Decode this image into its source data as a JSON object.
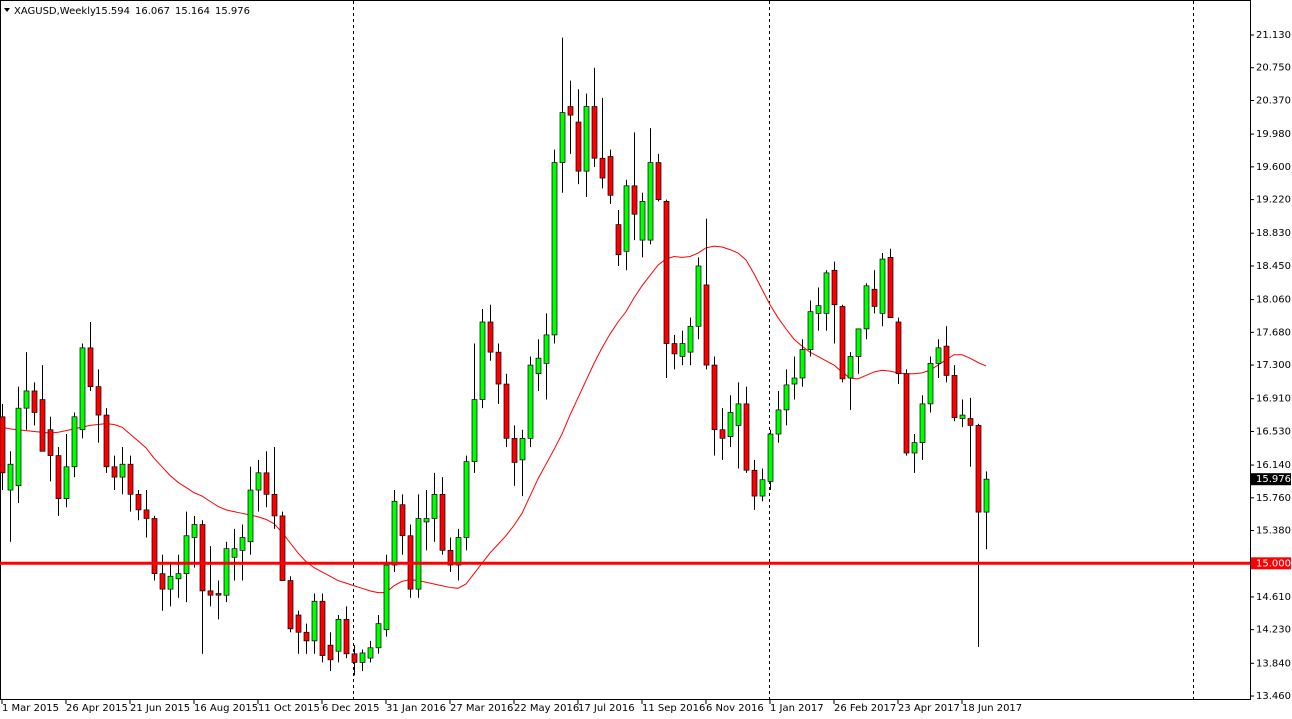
{
  "chart_data": {
    "type": "candlestick",
    "title": "XAGUSD,Weekly",
    "categories": [
      "1 Mar 2015",
      null,
      null,
      null,
      null,
      null,
      null,
      null,
      "26 Apr 2015",
      null,
      null,
      null,
      null,
      null,
      null,
      null,
      "21 Jun 2015",
      null,
      null,
      null,
      null,
      null,
      null,
      null,
      "16 Aug 2015",
      null,
      null,
      null,
      null,
      null,
      null,
      null,
      "11 Oct 2015",
      null,
      null,
      null,
      null,
      null,
      null,
      null,
      "6 Dec 2015",
      null,
      null,
      null,
      null,
      null,
      null,
      null,
      "31 Jan 2016",
      null,
      null,
      null,
      null,
      null,
      null,
      null,
      "27 Mar 2016",
      null,
      null,
      null,
      null,
      null,
      null,
      null,
      "22 May 2016",
      null,
      null,
      null,
      null,
      null,
      null,
      null,
      "17 Jul 2016",
      null,
      null,
      null,
      null,
      null,
      null,
      null,
      "11 Sep 2016",
      null,
      null,
      null,
      null,
      null,
      null,
      null,
      "6 Nov 2016",
      null,
      null,
      null,
      null,
      null,
      null,
      null,
      "1 Jan 2017",
      null,
      null,
      null,
      null,
      null,
      null,
      null,
      "26 Feb 2017",
      null,
      null,
      null,
      null,
      null,
      null,
      null,
      "23 Apr 2017",
      null,
      null,
      null,
      null,
      null,
      null,
      null,
      "18 Jun 2017",
      null,
      null,
      null
    ],
    "open": [
      16.7,
      15.85,
      15.9,
      16.8,
      17.0,
      16.9,
      16.55,
      16.25,
      15.75,
      16.12,
      16.55,
      17.5,
      17.05,
      16.72,
      16.12,
      16.0,
      16.15,
      15.8,
      15.62,
      15.52,
      14.88,
      14.7,
      14.82,
      14.88,
      15.3,
      15.45,
      14.68,
      14.65,
      14.63,
      15.07,
      15.15,
      15.25,
      15.85,
      16.05,
      15.8,
      15.55,
      14.8,
      14.4,
      14.2,
      14.1,
      14.56,
      14.05,
      13.98,
      14.35,
      13.95,
      13.85,
      13.9,
      14.02,
      14.23,
      14.98,
      15.68,
      15.32,
      14.7,
      15.48,
      15.52,
      15.8,
      15.15,
      14.98,
      15.3,
      16.18,
      16.9,
      17.8,
      17.45,
      17.08,
      16.45,
      16.2,
      16.45,
      17.2,
      17.32,
      17.65,
      19.65,
      20.3,
      20.12,
      19.55,
      20.3,
      19.7,
      19.72,
      18.93,
      18.62,
      19.38,
      18.75,
      18.75,
      19.65,
      19.2,
      17.55,
      17.4,
      17.45,
      17.75,
      18.23,
      17.3,
      16.55,
      16.47,
      16.6,
      16.85,
      16.08,
      15.78,
      15.95,
      16.5,
      16.78,
      17.08,
      17.15,
      17.48,
      17.9,
      17.9,
      18.4,
      17.98,
      17.15,
      17.4,
      17.72,
      18.18,
      17.9,
      18.55,
      17.8,
      17.2,
      16.28,
      16.4,
      16.85,
      17.32,
      17.52,
      17.18,
      16.68,
      16.68,
      16.6,
      15.594
    ],
    "high": [
      16.85,
      16.3,
      17.05,
      17.45,
      17.1,
      17.3,
      16.7,
      16.35,
      16.5,
      16.75,
      17.55,
      17.8,
      17.25,
      16.8,
      16.25,
      16.35,
      16.25,
      15.85,
      15.85,
      15.55,
      15.1,
      15.0,
      15.1,
      15.6,
      15.55,
      15.5,
      15.2,
      14.8,
      15.25,
      15.4,
      15.45,
      16.12,
      16.2,
      16.3,
      16.35,
      15.6,
      14.85,
      14.45,
      14.3,
      14.65,
      14.65,
      14.2,
      14.4,
      14.5,
      14.05,
      14.0,
      14.1,
      14.4,
      15.1,
      15.85,
      15.8,
      15.45,
      15.8,
      15.85,
      16.05,
      16.0,
      15.3,
      15.4,
      16.25,
      17.55,
      17.95,
      18.0,
      17.55,
      17.2,
      16.6,
      16.55,
      17.4,
      17.6,
      17.9,
      19.8,
      21.1,
      20.6,
      20.5,
      20.45,
      20.75,
      20.4,
      19.8,
      19.1,
      19.45,
      20.0,
      19.3,
      20.05,
      19.75,
      19.22,
      17.65,
      17.7,
      17.85,
      18.55,
      19.0,
      17.4,
      16.8,
      16.95,
      17.1,
      17.05,
      16.2,
      16.1,
      16.55,
      17.0,
      17.25,
      17.4,
      17.6,
      18.05,
      18.2,
      18.4,
      18.5,
      18.0,
      17.45,
      17.7,
      18.25,
      18.4,
      18.6,
      18.65,
      17.85,
      17.25,
      16.5,
      16.95,
      17.4,
      17.6,
      17.75,
      17.3,
      16.9,
      16.92,
      16.62,
      16.067
    ],
    "low": [
      15.85,
      15.25,
      15.7,
      16.55,
      16.6,
      16.3,
      15.95,
      15.55,
      15.65,
      16.0,
      16.45,
      17.0,
      16.4,
      16.05,
      15.85,
      15.8,
      15.6,
      15.5,
      15.3,
      14.8,
      14.45,
      14.5,
      14.6,
      14.55,
      14.95,
      13.95,
      14.5,
      14.35,
      14.55,
      14.8,
      14.8,
      15.1,
      15.6,
      15.65,
      15.4,
      14.8,
      14.2,
      13.95,
      13.95,
      13.95,
      13.85,
      13.75,
      13.85,
      13.9,
      13.7,
      13.75,
      13.85,
      13.95,
      14.15,
      14.9,
      15.1,
      14.6,
      14.6,
      15.15,
      15.25,
      15.1,
      14.9,
      14.8,
      15.15,
      16.05,
      16.8,
      17.35,
      16.85,
      16.35,
      15.9,
      15.78,
      16.35,
      17.0,
      16.9,
      17.55,
      19.3,
      19.75,
      19.4,
      19.25,
      19.6,
      19.35,
      19.17,
      18.45,
      18.4,
      18.75,
      18.55,
      18.7,
      19.2,
      17.15,
      17.25,
      17.3,
      17.3,
      17.6,
      17.25,
      16.25,
      16.2,
      16.35,
      16.1,
      16.05,
      15.62,
      15.72,
      15.85,
      16.4,
      16.6,
      16.9,
      17.05,
      17.4,
      17.7,
      17.7,
      17.55,
      17.1,
      16.78,
      17.2,
      17.6,
      17.9,
      17.75,
      17.85,
      17.08,
      16.25,
      16.05,
      16.2,
      16.75,
      17.15,
      17.1,
      16.65,
      16.58,
      16.12,
      14.03,
      15.164
    ],
    "close": [
      16.05,
      16.15,
      16.8,
      17.0,
      16.75,
      16.3,
      16.25,
      15.75,
      16.12,
      16.7,
      17.5,
      17.05,
      16.72,
      16.12,
      16.0,
      16.15,
      15.8,
      15.62,
      15.52,
      14.88,
      14.7,
      14.85,
      14.88,
      15.32,
      15.45,
      14.68,
      14.63,
      14.63,
      15.17,
      15.17,
      15.3,
      15.85,
      16.05,
      15.8,
      15.55,
      14.8,
      14.24,
      14.2,
      14.1,
      14.56,
      13.93,
      13.88,
      14.35,
      13.95,
      13.85,
      13.96,
      14.02,
      14.3,
      14.98,
      15.72,
      15.32,
      14.7,
      15.52,
      15.52,
      15.8,
      15.15,
      14.98,
      15.3,
      16.18,
      16.9,
      17.8,
      17.45,
      17.08,
      16.45,
      16.17,
      16.45,
      17.3,
      17.38,
      17.65,
      19.65,
      20.23,
      20.2,
      19.55,
      20.3,
      19.7,
      19.47,
      19.27,
      18.58,
      19.38,
      19.05,
      19.2,
      19.65,
      19.22,
      17.55,
      17.43,
      17.55,
      17.75,
      18.45,
      17.3,
      16.55,
      16.45,
      16.75,
      16.85,
      16.08,
      15.78,
      15.97,
      16.5,
      16.78,
      17.07,
      17.15,
      17.48,
      17.92,
      17.99,
      18.37,
      18.0,
      17.14,
      17.4,
      17.72,
      18.22,
      17.98,
      18.53,
      17.85,
      17.2,
      16.28,
      16.4,
      16.85,
      17.32,
      17.5,
      17.18,
      16.69,
      16.72,
      16.6,
      15.594,
      15.976
    ],
    "up_color": "#00ff00",
    "down_color": "#ff0000",
    "wick_color": "#000000",
    "ma": {
      "color": "#ff0000",
      "values": [
        16.58,
        16.56,
        16.55,
        16.54,
        16.53,
        16.52,
        16.51,
        16.52,
        16.54,
        16.56,
        16.58,
        16.6,
        16.61,
        16.62,
        16.61,
        16.58,
        16.5,
        16.42,
        16.34,
        16.22,
        16.12,
        16.02,
        15.94,
        15.88,
        15.82,
        15.78,
        15.72,
        15.66,
        15.62,
        15.6,
        15.58,
        15.56,
        15.54,
        15.51,
        15.46,
        15.36,
        15.24,
        15.12,
        15.02,
        14.95,
        14.9,
        14.85,
        14.8,
        14.77,
        14.74,
        14.71,
        14.68,
        14.66,
        14.66,
        14.74,
        14.79,
        14.81,
        14.8,
        14.78,
        14.76,
        14.74,
        14.72,
        14.71,
        14.76,
        14.88,
        15.0,
        15.12,
        15.22,
        15.32,
        15.44,
        15.58,
        15.78,
        15.98,
        16.15,
        16.32,
        16.5,
        16.72,
        16.92,
        17.12,
        17.32,
        17.5,
        17.66,
        17.8,
        17.92,
        18.08,
        18.22,
        18.34,
        18.46,
        18.53,
        18.56,
        18.55,
        18.56,
        18.6,
        18.66,
        18.68,
        18.67,
        18.64,
        18.6,
        18.52,
        18.36,
        18.18,
        18.0,
        17.85,
        17.72,
        17.6,
        17.52,
        17.45,
        17.4,
        17.35,
        17.3,
        17.22,
        17.15,
        17.14,
        17.18,
        17.22,
        17.24,
        17.23,
        17.21,
        17.2,
        17.2,
        17.21,
        17.24,
        17.3,
        17.36,
        17.42,
        17.42,
        17.38,
        17.33,
        17.29
      ]
    },
    "hline": {
      "value": 15,
      "label": "15.000",
      "color": "#ff0000"
    },
    "ylim": [
      13.414,
      21.536
    ],
    "yticks": [
      {
        "value": 21.13,
        "label": "21.130"
      },
      {
        "value": 20.75,
        "label": "20.750"
      },
      {
        "value": 20.37,
        "label": "20.370"
      },
      {
        "value": 19.98,
        "label": "19.980"
      },
      {
        "value": 19.6,
        "label": "19.600"
      },
      {
        "value": 19.22,
        "label": "19.220"
      },
      {
        "value": 18.83,
        "label": "18.830"
      },
      {
        "value": 18.45,
        "label": "18.450"
      },
      {
        "value": 18.06,
        "label": "18.060"
      },
      {
        "value": 17.68,
        "label": "17.680"
      },
      {
        "value": 17.3,
        "label": "17.300"
      },
      {
        "value": 16.91,
        "label": "16.910"
      },
      {
        "value": 16.53,
        "label": "16.530"
      },
      {
        "value": 16.14,
        "label": "16.140"
      },
      {
        "value": 15.76,
        "label": "15.760"
      },
      {
        "value": 15.38,
        "label": "15.380"
      },
      {
        "value": 15,
        "label": "15.000"
      },
      {
        "value": 14.61,
        "label": "14.610"
      },
      {
        "value": 14.23,
        "label": "14.230"
      },
      {
        "value": 13.84,
        "label": "13.840"
      },
      {
        "value": 13.46,
        "label": "13.460"
      }
    ]
  }
}
